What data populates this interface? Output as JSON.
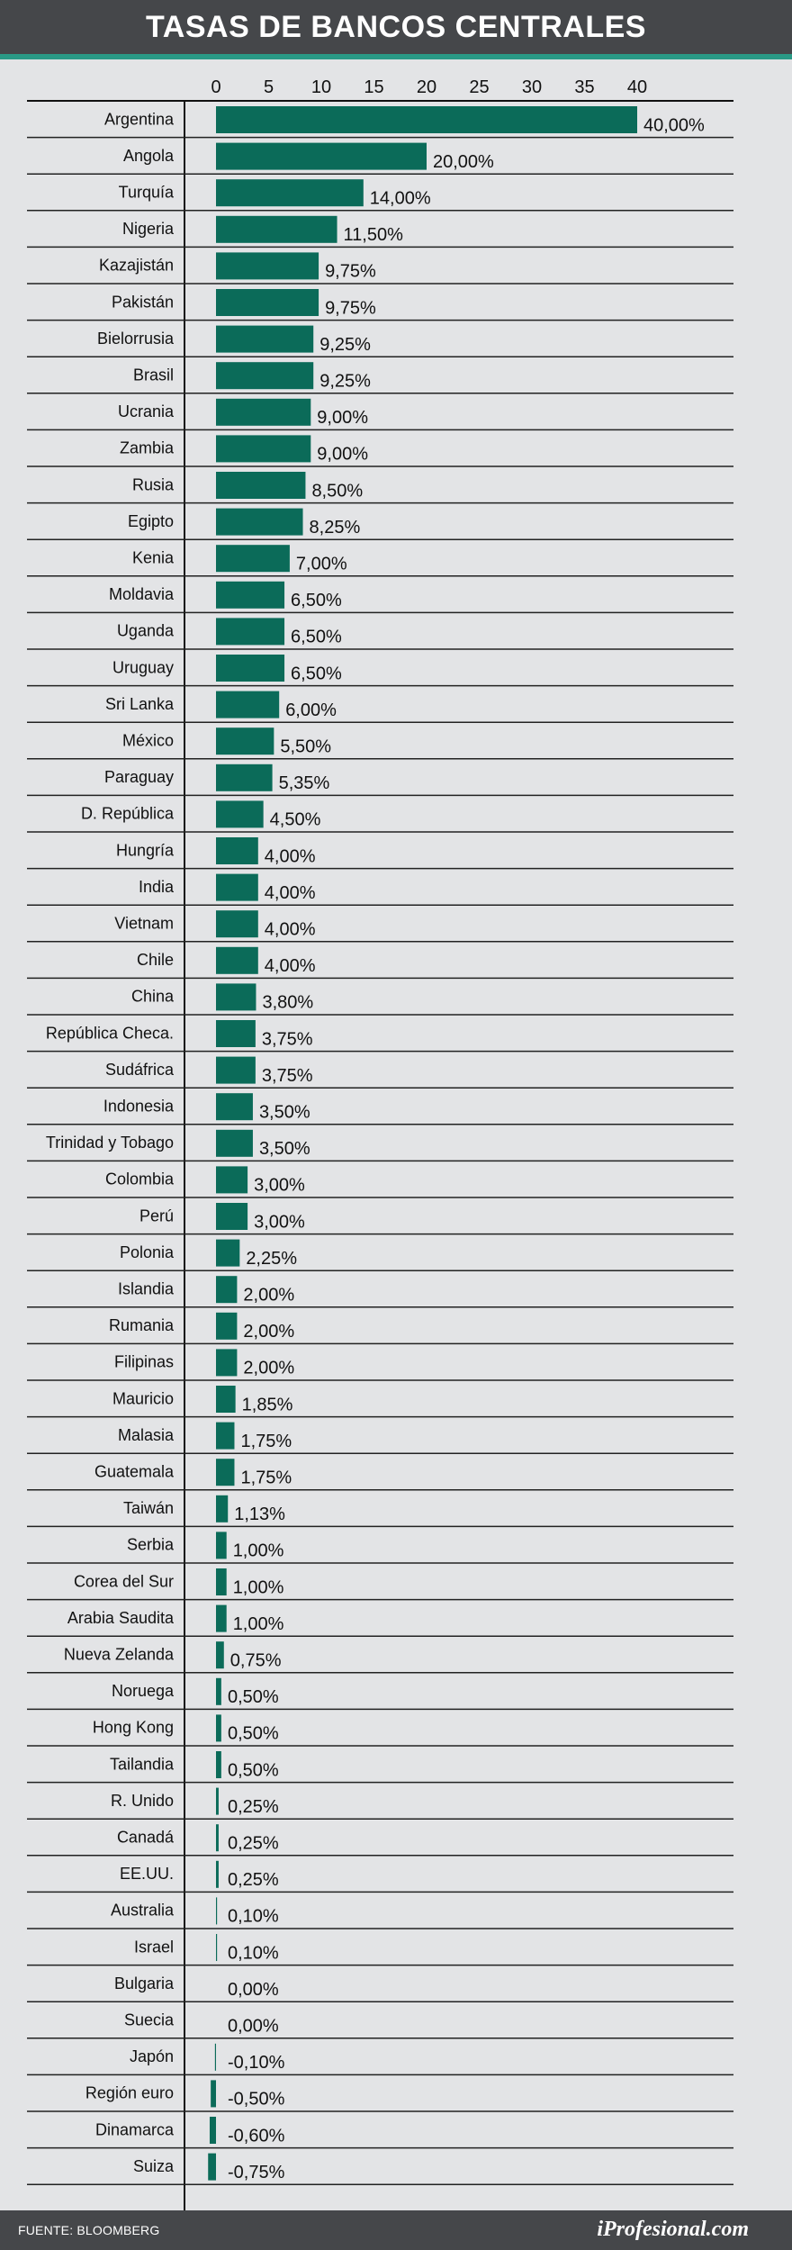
{
  "header": {
    "title": "TASAS DE BANCOS CENTRALES"
  },
  "footer": {
    "source": "FUENTE: BLOOMBERG",
    "brand": "iProfesional.com"
  },
  "colors": {
    "bar": "#0b6b59",
    "header_bg": "#45474a",
    "accent_stripe": "#2a9a86",
    "background": "#e3e4e6"
  },
  "chart_data": {
    "type": "bar",
    "orientation": "horizontal",
    "title": "TASAS DE BANCOS CENTRALES",
    "xlim": [
      -1,
      43
    ],
    "ticks": [
      "0",
      "5",
      "10",
      "15",
      "20",
      "25",
      "30",
      "35",
      "40"
    ],
    "tick_values": [
      0,
      5,
      10,
      15,
      20,
      25,
      30,
      35,
      40
    ],
    "axis_position": "top",
    "categories": [
      "Argentina",
      "Angola",
      "Turquía",
      "Nigeria",
      "Kazajistán",
      "Pakistán",
      "Bielorrusia",
      "Brasil",
      "Ucrania",
      "Zambia",
      "Rusia",
      "Egipto",
      "Kenia",
      "Moldavia",
      "Uganda",
      "Uruguay",
      "Sri Lanka",
      "México",
      "Paraguay",
      "D. República",
      "Hungría",
      "India",
      "Vietnam",
      "Chile",
      "China",
      "República Checa.",
      "Sudáfrica",
      "Indonesia",
      "Trinidad y Tobago",
      "Colombia",
      "Perú",
      "Polonia",
      "Islandia",
      "Rumania",
      "Filipinas",
      "Mauricio",
      "Malasia",
      "Guatemala",
      "Taiwán",
      "Serbia",
      "Corea del Sur",
      "Arabia Saudita",
      "Nueva Zelanda",
      "Noruega",
      "Hong Kong",
      "Tailandia",
      "R. Unido",
      "Canadá",
      "EE.UU.",
      "Australia",
      "Israel",
      "Bulgaria",
      "Suecia",
      "Japón",
      "Región euro",
      "Dinamarca",
      "Suiza"
    ],
    "values": [
      40,
      20,
      14,
      11.5,
      9.75,
      9.75,
      9.25,
      9.25,
      9,
      9,
      8.5,
      8.25,
      7,
      6.5,
      6.5,
      6.5,
      6,
      5.5,
      5.35,
      4.5,
      4,
      4,
      4,
      4,
      3.8,
      3.75,
      3.75,
      3.5,
      3.5,
      3,
      3,
      2.25,
      2,
      2,
      2,
      1.85,
      1.75,
      1.75,
      1.13,
      1,
      1,
      1,
      0.75,
      0.5,
      0.5,
      0.5,
      0.25,
      0.25,
      0.25,
      0.1,
      0.1,
      0,
      0,
      -0.1,
      -0.5,
      -0.6,
      -0.75
    ],
    "labels": [
      "40,00%",
      "20,00%",
      "14,00%",
      "11,50%",
      "9,75%",
      "9,75%",
      "9,25%",
      "9,25%",
      "9,00%",
      "9,00%",
      "8,50%",
      "8,25%",
      "7,00%",
      "6,50%",
      "6,50%",
      "6,50%",
      "6,00%",
      "5,50%",
      "5,35%",
      "4,50%",
      "4,00%",
      "4,00%",
      "4,00%",
      "4,00%",
      "3,80%",
      "3,75%",
      "3,75%",
      "3,50%",
      "3,50%",
      "3,00%",
      "3,00%",
      "2,25%",
      "2,00%",
      "2,00%",
      "2,00%",
      "1,85%",
      "1,75%",
      "1,75%",
      "1,13%",
      "1,00%",
      "1,00%",
      "1,00%",
      "0,75%",
      "0,50%",
      "0,50%",
      "0,50%",
      "0,25%",
      "0,25%",
      "0,25%",
      "0,10%",
      "0,10%",
      "0,00%",
      "0,00%",
      "-0,10%",
      "-0,50%",
      "-0,60%",
      "-0,75%"
    ]
  }
}
